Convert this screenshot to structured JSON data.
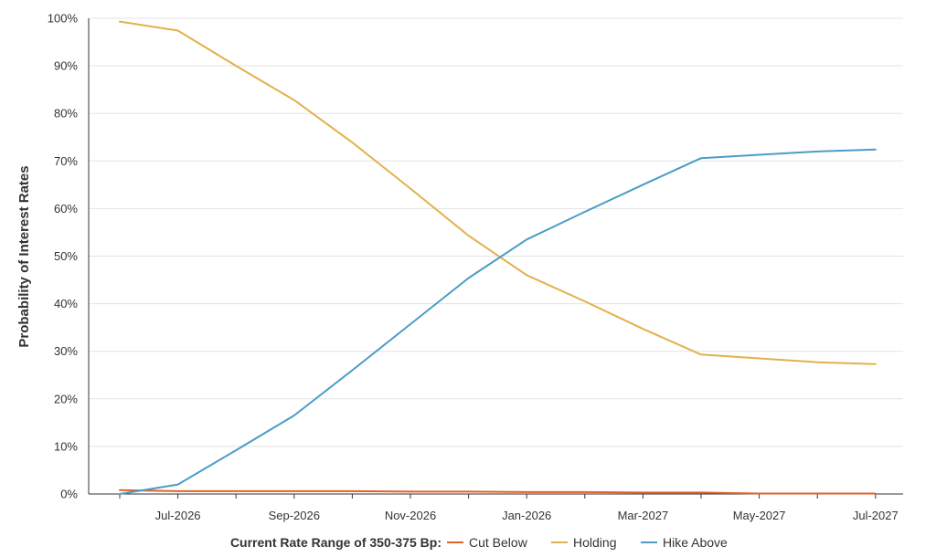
{
  "chart_data": {
    "type": "line",
    "title": "",
    "xlabel": "",
    "ylabel": "Probability of Interest Rates",
    "ylim": [
      0,
      100
    ],
    "y_ticks": [
      0,
      10,
      20,
      30,
      40,
      50,
      60,
      70,
      80,
      90,
      100
    ],
    "y_tick_labels": [
      "0%",
      "10%",
      "20%",
      "30%",
      "40%",
      "50%",
      "60%",
      "70%",
      "80%",
      "90%",
      "100%"
    ],
    "x_points": 14,
    "x_tick_labels": [
      {
        "at": 1,
        "label": "Jul-2026"
      },
      {
        "at": 3,
        "label": "Sep-2026"
      },
      {
        "at": 5,
        "label": "Nov-2026"
      },
      {
        "at": 7,
        "label": "Jan-2026"
      },
      {
        "at": 9,
        "label": "Mar-2027"
      },
      {
        "at": 11,
        "label": "May-2027"
      },
      {
        "at": 13,
        "label": "Jul-2027"
      }
    ],
    "grid": "horizontal",
    "legend": {
      "title": "Current Rate Range of 350-375 Bp:",
      "placement": "bottom"
    },
    "series": [
      {
        "name": "Cut Below",
        "color": "#E2622A",
        "values": [
          0.8,
          0.6,
          0.6,
          0.6,
          0.6,
          0.5,
          0.5,
          0.4,
          0.4,
          0.3,
          0.3,
          0.1,
          0.1,
          0.1
        ]
      },
      {
        "name": "Holding",
        "color": "#E3B04B",
        "values": [
          99.3,
          97.4,
          90.0,
          82.8,
          73.9,
          64.2,
          54.3,
          46.0,
          40.5,
          34.7,
          29.3,
          28.5,
          27.7,
          27.3
        ]
      },
      {
        "name": "Hike Above",
        "color": "#4A9CC8",
        "values": [
          0.0,
          2.0,
          9.2,
          16.5,
          26.0,
          35.7,
          45.4,
          53.5,
          59.3,
          65.0,
          70.6,
          71.3,
          72.0,
          72.4
        ]
      }
    ]
  }
}
